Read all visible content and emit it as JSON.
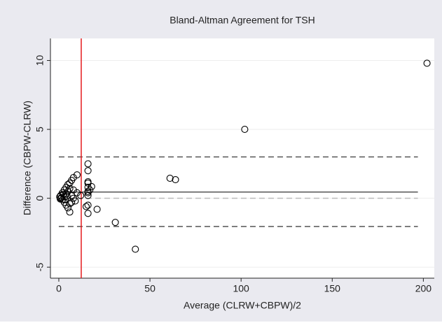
{
  "chart_data": {
    "type": "scatter",
    "title": "Bland-Altman Agreement for TSH",
    "xlabel": "Average (CLRW+CBPW)/2",
    "ylabel": "Difference (CBPW-CLRW)",
    "series": [
      {
        "color": "#000000",
        "x": [
          202,
          102,
          61,
          64,
          42,
          31,
          21,
          16,
          16,
          16,
          16,
          16,
          17,
          18,
          16,
          16,
          16,
          15,
          16,
          16,
          10,
          8,
          7,
          6,
          5,
          4,
          3,
          2,
          1,
          0.5,
          1,
          2,
          3,
          4,
          5,
          6,
          7,
          8,
          9,
          6,
          5,
          6,
          4,
          3,
          7,
          8,
          12,
          10,
          1.5,
          0.8,
          2.5,
          3.5,
          4.5
        ],
        "values": [
          9.8,
          5,
          1.45,
          1.35,
          -3.7,
          -1.75,
          -0.8,
          2.5,
          2,
          1.2,
          1.1,
          0.8,
          0.6,
          0.85,
          0.5,
          0.4,
          0.2,
          -0.6,
          -1.1,
          -0.5,
          1.7,
          1.5,
          1.3,
          1.1,
          1.0,
          0.8,
          0.6,
          0.4,
          0.2,
          0.1,
          0,
          -0.1,
          0.1,
          0.3,
          0.5,
          0.7,
          0.2,
          0,
          -0.2,
          -0.4,
          -0.7,
          -1.0,
          -0.5,
          -0.3,
          -0.3,
          0.6,
          0.2,
          0.4,
          0.05,
          -0.05,
          0.3,
          -0.1,
          0.15
        ]
      }
    ],
    "hlines": [
      {
        "value": 0.45,
        "style": "solid",
        "color": "#555555"
      },
      {
        "value": 3.0,
        "style": "dashed",
        "color": "#555555"
      },
      {
        "value": -2.05,
        "style": "dashed",
        "color": "#555555"
      },
      {
        "value": 0,
        "style": "dashed",
        "color": "#bbbbbb"
      }
    ],
    "hline_span": [
      0,
      197
    ],
    "vline": {
      "value": 12.3,
      "color": "#e41a1c"
    },
    "xlim": [
      -4.6,
      206
    ],
    "ylim": [
      -5.8,
      11.6
    ],
    "xticks": [
      0,
      50,
      100,
      150,
      200
    ],
    "yticks": [
      -5,
      0,
      5,
      10
    ],
    "grid": true
  }
}
